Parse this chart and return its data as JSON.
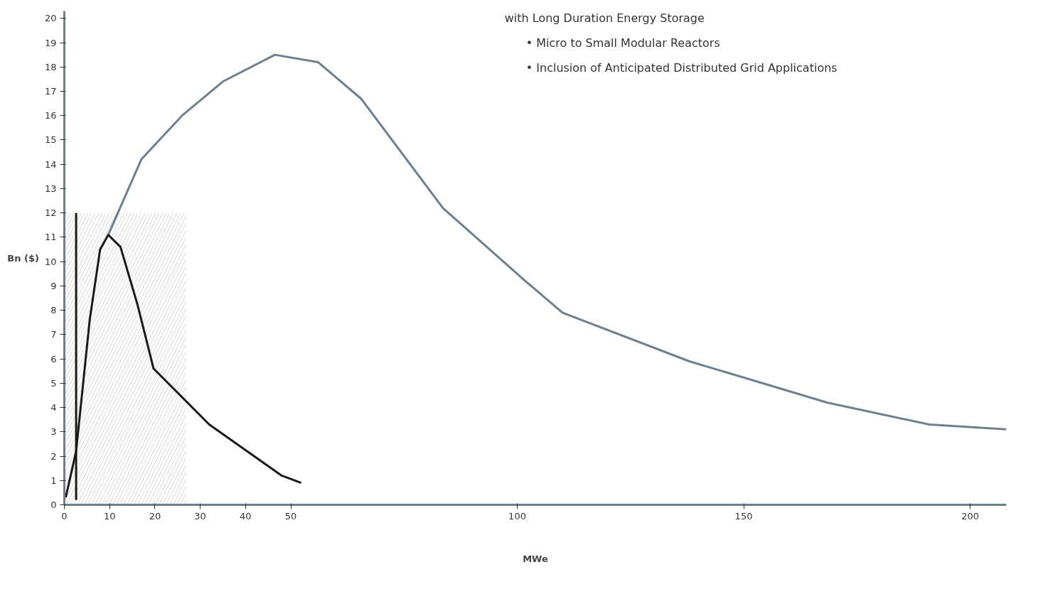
{
  "chart_data": {
    "type": "line",
    "xlabel": "MWe",
    "ylabel": "Bn ($)",
    "annotations": [
      "with Long Duration Energy Storage",
      "•   Micro to Small Modular Reactors",
      "•   Inclusion of Anticipated Distributed Grid Applications"
    ],
    "xlim": [
      0,
      208
    ],
    "ylim": [
      0,
      20.3
    ],
    "xticks": [
      0,
      10,
      20,
      30,
      40,
      50,
      100,
      150,
      200
    ],
    "yticks": [
      0,
      1,
      2,
      3,
      4,
      5,
      6,
      7,
      8,
      9,
      10,
      11,
      12,
      13,
      14,
      15,
      16,
      17,
      18,
      19,
      20
    ],
    "grid": false,
    "line_style": "solid",
    "series": [
      {
        "type": "area",
        "color": "#d9d9d9",
        "x": [
          0,
          26.8
        ],
        "values": [
          12,
          12
        ]
      },
      {
        "color": "#6b8093",
        "x": [
          9.7,
          17,
          26,
          35,
          46.5,
          56,
          65.5,
          83.6,
          101.8,
          110,
          138,
          168.5,
          191,
          208
        ],
        "values": [
          11.1,
          14.2,
          16,
          17.4,
          18.5,
          18.2,
          16.7,
          12.2,
          9.2,
          7.9,
          5.9,
          4.2,
          3.3,
          3.1
        ]
      },
      {
        "color": "#1a1a1a",
        "x": [
          0.3,
          2.6,
          5.6,
          7.9,
          9.7,
          12.4,
          16.2,
          19.7,
          32,
          48,
          52.3
        ],
        "values": [
          0.3,
          2.2,
          7.6,
          10.5,
          11.1,
          10.6,
          8.2,
          5.6,
          3.3,
          1.2,
          0.9
        ]
      },
      {
        "color": "#1a1a1a",
        "x": [
          2.6,
          2.6
        ],
        "values": [
          0.2,
          12
        ]
      }
    ]
  }
}
